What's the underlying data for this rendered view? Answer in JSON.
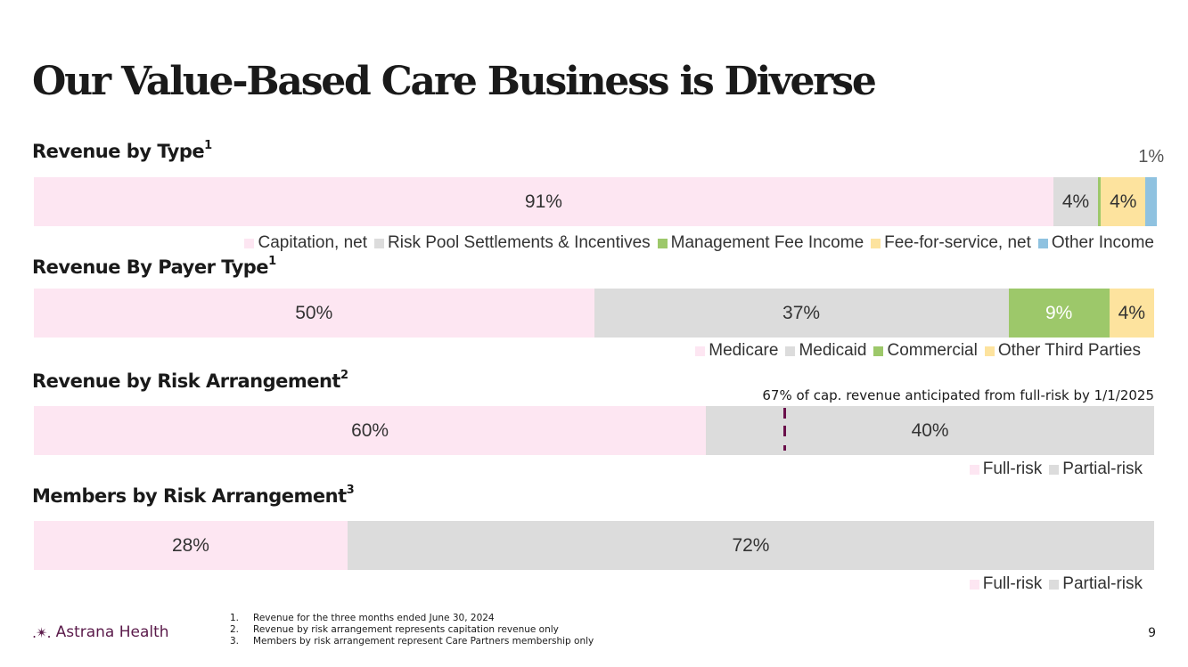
{
  "title": "Our Value-Based Care Business is Diverse",
  "chart_data": [
    {
      "type": "bar",
      "stacked": "horizontal-100%",
      "title": "Revenue by Type",
      "title_sup": "1",
      "categories": [
        "Capitation, net",
        "Risk Pool Settlements & Incentives",
        "Management Fee Income",
        "Fee-for-service, net",
        "Other Income"
      ],
      "values": [
        91,
        4,
        0,
        4,
        1
      ],
      "labels": [
        "91%",
        "4%",
        "0%",
        "4%",
        "1%"
      ],
      "colors": [
        "#fde6f2",
        "#dcdcdc",
        "#9dc86a",
        "#fde39e",
        "#8fc2e0"
      ],
      "legend": "bottom-right"
    },
    {
      "type": "bar",
      "stacked": "horizontal-100%",
      "title": "Revenue By Payer Type",
      "title_sup": "1",
      "categories": [
        "Medicare",
        "Medicaid",
        "Commercial",
        "Other Third Parties"
      ],
      "values": [
        50,
        37,
        9,
        4
      ],
      "labels": [
        "50%",
        "37%",
        "9%",
        "4%"
      ],
      "colors": [
        "#fde6f2",
        "#dcdcdc",
        "#9dc86a",
        "#fde39e"
      ],
      "legend": "bottom-right"
    },
    {
      "type": "bar",
      "stacked": "horizontal-100%",
      "title": "Revenue by Risk Arrangement",
      "title_sup": "2",
      "categories": [
        "Full-risk",
        "Partial-risk"
      ],
      "values": [
        60,
        40
      ],
      "labels": [
        "60%",
        "40%"
      ],
      "colors": [
        "#fde6f2",
        "#dcdcdc"
      ],
      "legend": "bottom-right",
      "annotation": "67% of cap. revenue anticipated from full-risk by 1/1/2025",
      "marker_value": 67,
      "marker_color": "#6a0f4a"
    },
    {
      "type": "bar",
      "stacked": "horizontal-100%",
      "title": "Members by Risk Arrangement",
      "title_sup": "3",
      "categories": [
        "Full-risk",
        "Partial-risk"
      ],
      "values": [
        28,
        72
      ],
      "labels": [
        "28%",
        "72%"
      ],
      "colors": [
        "#fde6f2",
        "#dcdcdc"
      ],
      "legend": "bottom-right"
    }
  ],
  "footer": {
    "logo_text": "Astrana Health",
    "logo_mark": ".✴.",
    "footnotes": [
      {
        "num": "1.",
        "text": "Revenue for the three months ended June 30, 2024"
      },
      {
        "num": "2.",
        "text": "Revenue by risk arrangement represents capitation revenue only"
      },
      {
        "num": "3.",
        "text": "Members by risk arrangement represent Care Partners membership only"
      }
    ],
    "page_number": "9"
  }
}
